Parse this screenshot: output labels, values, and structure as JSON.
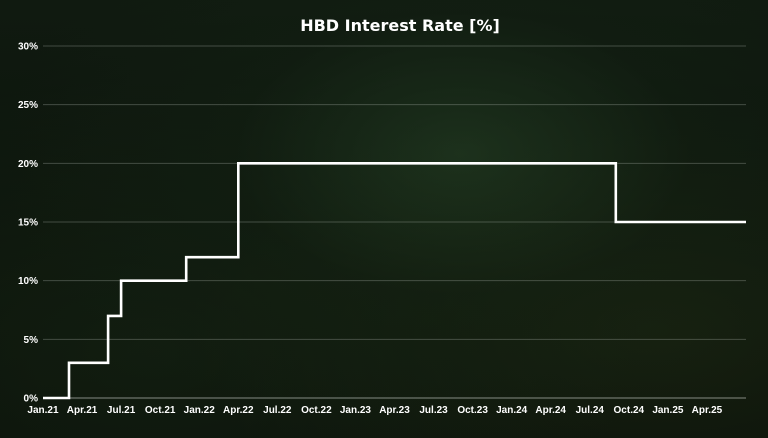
{
  "chart_data": {
    "type": "line",
    "title": "HBD Interest Rate [%]",
    "xlabel": "",
    "ylabel": "",
    "ylim": [
      0,
      30
    ],
    "y_ticks": [
      "0%",
      "5%",
      "10%",
      "15%",
      "20%",
      "25%",
      "30%"
    ],
    "x_ticks": [
      "Jan.21",
      "Apr.21",
      "Jul.21",
      "Oct.21",
      "Jan.22",
      "Apr.22",
      "Jul.22",
      "Oct.22",
      "Jan.23",
      "Apr.23",
      "Jul.23",
      "Oct.23",
      "Jan.24",
      "Apr.24",
      "Jul.24",
      "Oct.24",
      "Jan.25",
      "Apr.25"
    ],
    "xlim": [
      "2021-01",
      "2025-07"
    ],
    "grid": true,
    "legend": "none",
    "step": true,
    "series": [
      {
        "color": "#ffffff",
        "points": [
          {
            "x": "2021-01",
            "y": 0
          },
          {
            "x": "2021-03",
            "y": 0
          },
          {
            "x": "2021-03",
            "y": 3
          },
          {
            "x": "2021-06",
            "y": 3
          },
          {
            "x": "2021-06",
            "y": 7
          },
          {
            "x": "2021-07",
            "y": 7
          },
          {
            "x": "2021-07",
            "y": 10
          },
          {
            "x": "2021-12",
            "y": 10
          },
          {
            "x": "2021-12",
            "y": 12
          },
          {
            "x": "2022-04",
            "y": 12
          },
          {
            "x": "2022-04",
            "y": 20
          },
          {
            "x": "2024-09",
            "y": 20
          },
          {
            "x": "2024-09",
            "y": 15
          },
          {
            "x": "2025-07",
            "y": 15
          }
        ]
      }
    ]
  },
  "colors": {
    "background": "#0d130d",
    "line": "#ffffff",
    "text": "#ffffff"
  }
}
